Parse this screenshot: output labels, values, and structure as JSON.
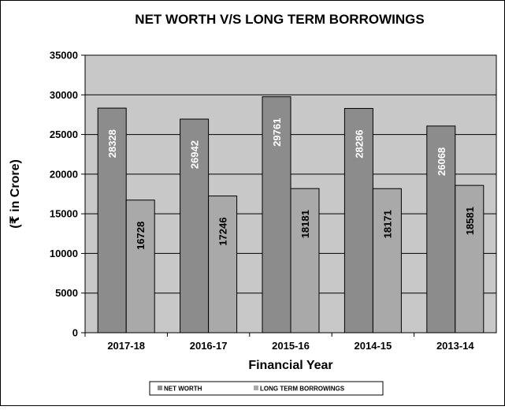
{
  "chart_data": {
    "type": "bar",
    "title": "NET WORTH V/S LONG TERM BORROWINGS",
    "xlabel": "Financial Year",
    "ylabel": "(₹ in Crore)",
    "categories": [
      "2017-18",
      "2016-17",
      "2015-16",
      "2014-15",
      "2013-14"
    ],
    "series": [
      {
        "name": "NET WORTH",
        "values": [
          28328,
          26942,
          29761,
          28286,
          26068
        ],
        "labels": [
          "28328",
          "26942",
          "29761",
          "28286",
          "26068"
        ],
        "color": "#8c8c8c",
        "label_color": "#ffffff"
      },
      {
        "name": "LONG TERM BORROWINGS",
        "values": [
          16728,
          17246,
          18181,
          18171,
          18581
        ],
        "labels": [
          "16728",
          "17246",
          "18181",
          "18171",
          "18581"
        ],
        "color": "#a9a9a9",
        "label_color": "#000000"
      }
    ],
    "ylim": [
      0,
      35000
    ],
    "yticks": [
      0,
      5000,
      10000,
      15000,
      20000,
      25000,
      30000,
      35000
    ],
    "ytick_labels": [
      "0",
      "5000",
      "10000",
      "15000",
      "20000",
      "25000",
      "30000",
      "35000"
    ],
    "grid": true,
    "legend_position": "bottom",
    "plot_background": "#c8c8c8",
    "data_label_orientation": "vertical"
  }
}
